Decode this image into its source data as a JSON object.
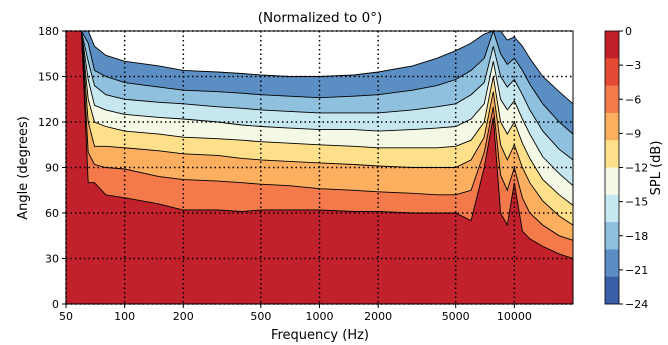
{
  "chart_data": {
    "type": "contour",
    "title": "(Normalized to 0°)",
    "xlabel": "Frequency (Hz)",
    "ylabel": "Angle (degrees)",
    "x_scale": "log",
    "xlim": [
      50,
      20000
    ],
    "ylim": [
      0,
      180
    ],
    "x_ticks": [
      50,
      100,
      200,
      500,
      1000,
      2000,
      5000,
      10000
    ],
    "x_tick_labels": [
      "50",
      "100",
      "200",
      "500",
      "1000",
      "2000",
      "5000",
      "10000"
    ],
    "y_ticks": [
      0,
      30,
      60,
      90,
      120,
      150,
      180
    ],
    "y_tick_labels": [
      "0",
      "30",
      "60",
      "90",
      "120",
      "150",
      "180"
    ],
    "grid": true,
    "grid_style": "dotted",
    "colorbar": {
      "label": "SPL (dB)",
      "ticks": [
        0,
        -3,
        -6,
        -9,
        -12,
        -15,
        -18,
        -21,
        -24
      ],
      "tick_labels": [
        "0",
        "−3",
        "−6",
        "−9",
        "−12",
        "−15",
        "−18",
        "−21",
        "−24"
      ],
      "colors": [
        "#c1212b",
        "#e34a33",
        "#f47a4b",
        "#fbaf5f",
        "#fee08b",
        "#f4f9e6",
        "#c6e7ef",
        "#8fc0dd",
        "#5b8fc4",
        "#3b5ea8"
      ]
    },
    "levels_db": [
      -3,
      -6,
      -9,
      -12,
      -15,
      -18,
      -21,
      -24
    ],
    "level_x_hz": [
      50,
      55,
      60,
      65,
      70,
      80,
      100,
      150,
      200,
      300,
      400,
      500,
      700,
      1000,
      1500,
      2000,
      3000,
      4000,
      5000,
      6000,
      7000,
      7800,
      8500,
      9200,
      10000,
      11000,
      12000,
      14000,
      17000,
      20000
    ],
    "level_angles_deg": {
      "-3": [
        180,
        180,
        180,
        80,
        80,
        72,
        70,
        66,
        62,
        62,
        61,
        62,
        62,
        62,
        61,
        61,
        60,
        60,
        60,
        55,
        90,
        123,
        60,
        52,
        80,
        48,
        43,
        38,
        33,
        30
      ],
      "-6": [
        180,
        180,
        180,
        100,
        92,
        90,
        89,
        84,
        82,
        81,
        80,
        79,
        78,
        76,
        75,
        74,
        73,
        72,
        72,
        75,
        100,
        130,
        85,
        75,
        90,
        70,
        60,
        52,
        45,
        42
      ],
      "-9": [
        180,
        180,
        180,
        120,
        104,
        104,
        103,
        101,
        99,
        98,
        96,
        95,
        94,
        93,
        92,
        91,
        90,
        90,
        90,
        95,
        110,
        140,
        105,
        95,
        105,
        90,
        80,
        68,
        58,
        52
      ],
      "-12": [
        180,
        180,
        180,
        135,
        120,
        117,
        114,
        112,
        110,
        109,
        108,
        107,
        106,
        105,
        104,
        103,
        103,
        103,
        104,
        108,
        120,
        150,
        120,
        112,
        120,
        106,
        96,
        82,
        72,
        65
      ],
      "-15": [
        180,
        180,
        180,
        148,
        131,
        128,
        125,
        123,
        122,
        120,
        118,
        117,
        116,
        115,
        115,
        114,
        115,
        116,
        117,
        122,
        132,
        160,
        135,
        128,
        134,
        122,
        112,
        97,
        86,
        78
      ],
      "-18": [
        180,
        180,
        180,
        160,
        144,
        138,
        135,
        133,
        132,
        130,
        129,
        128,
        127,
        126,
        126,
        126,
        128,
        130,
        132,
        138,
        146,
        170,
        150,
        143,
        148,
        138,
        128,
        114,
        102,
        95
      ],
      "-21": [
        180,
        180,
        180,
        172,
        154,
        150,
        146,
        143,
        141,
        140,
        139,
        138,
        137,
        136,
        137,
        138,
        141,
        144,
        148,
        154,
        162,
        180,
        165,
        158,
        162,
        154,
        145,
        132,
        120,
        112
      ],
      "-24": [
        180,
        180,
        180,
        180,
        170,
        164,
        160,
        157,
        154,
        153,
        152,
        151,
        150,
        150,
        151,
        153,
        157,
        162,
        167,
        172,
        178,
        180,
        180,
        174,
        176,
        170,
        162,
        150,
        140,
        132
      ]
    }
  }
}
